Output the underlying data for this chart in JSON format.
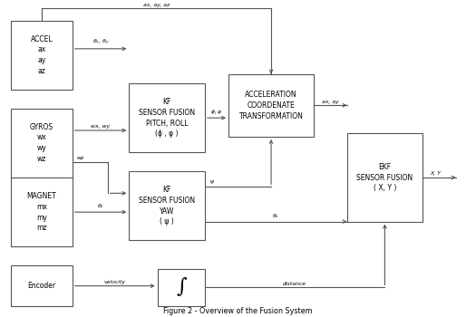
{
  "title": "Figure 2 - Overview of the Fusion System",
  "bg_color": "#ffffff",
  "box_edge_color": "#555555",
  "text_color": "#000000",
  "arrow_color": "#555555",
  "boxes": {
    "accel": [
      0.02,
      0.72,
      0.13,
      0.22
    ],
    "gyros": [
      0.02,
      0.44,
      0.13,
      0.22
    ],
    "magnet": [
      0.02,
      0.22,
      0.13,
      0.22
    ],
    "encoder": [
      0.02,
      0.03,
      0.13,
      0.13
    ],
    "kf_pr": [
      0.27,
      0.52,
      0.16,
      0.22
    ],
    "kf_yaw": [
      0.27,
      0.24,
      0.16,
      0.22
    ],
    "accel_ct": [
      0.48,
      0.57,
      0.18,
      0.2
    ],
    "integr": [
      0.33,
      0.03,
      0.1,
      0.12
    ],
    "ekf": [
      0.73,
      0.3,
      0.16,
      0.28
    ]
  },
  "box_labels": {
    "accel": "ACCEL\nax\nay\naz",
    "gyros": "GYROS\nwx\nwy\nwz",
    "magnet": "MAGNET\nmx\nmy\nmz",
    "encoder": "Encoder",
    "kf_pr": "KF\nSENSOR FUSION\nPITCH, ROLL\n(ϕ , φ )",
    "kf_yaw": "KF\nSENSOR FUSION\nYAW\n( ψ )",
    "accel_ct": "ACCELERATION\nCOORDENATE\nTRANSFORMATION",
    "integr": "∫",
    "ekf": "EKF\nSENSOR FUSION\n( X, Y )"
  }
}
